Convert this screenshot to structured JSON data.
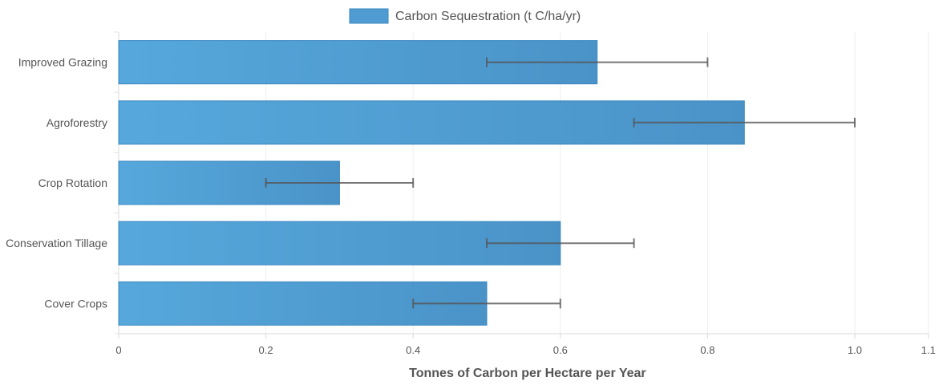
{
  "chart_data": {
    "type": "bar",
    "orientation": "horizontal",
    "categories": [
      "Improved Grazing",
      "Agroforestry",
      "Crop Rotation",
      "Conservation Tillage",
      "Cover Crops"
    ],
    "series": [
      {
        "name": "Carbon Sequestration (t C/ha/yr)",
        "values": [
          0.65,
          0.85,
          0.3,
          0.6,
          0.5
        ],
        "error_low": [
          0.5,
          0.7,
          0.2,
          0.5,
          0.4
        ],
        "error_high": [
          0.8,
          1.0,
          0.4,
          0.7,
          0.6
        ],
        "color": "#4f9bd2",
        "border_color": "#3a87bf"
      }
    ],
    "xlabel": "Tonnes of Carbon per Hectare per Year",
    "ylabel": "",
    "xlim": [
      0,
      1.1
    ],
    "xticks": [
      "0",
      "0.2",
      "0.4",
      "0.6",
      "0.8",
      "1.0",
      "1.1"
    ],
    "xtick_values": [
      0,
      0.2,
      0.4,
      0.6,
      0.8,
      1.0,
      1.1
    ],
    "grid": true,
    "legend_position": "top-center",
    "error_bar_color": "#555555"
  }
}
